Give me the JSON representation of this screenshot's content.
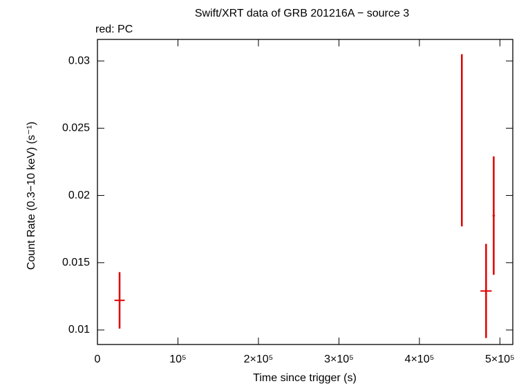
{
  "chart_data": {
    "type": "errorbar",
    "title": "Swift/XRT data of GRB 201216A − source 3",
    "subtitle": "red: PC",
    "x_label": "Time since trigger (s)",
    "y_label": "Count Rate (0.3−10 keV) (s⁻¹)",
    "xlim": [
      0,
      516000
    ],
    "ylim": [
      0.00892,
      0.0316
    ],
    "xticks": [
      0,
      {
        "value": 100000,
        "label": "10⁵"
      },
      {
        "value": 200000,
        "label": "2×10⁵"
      },
      {
        "value": 300000,
        "label": "3×10⁵"
      },
      {
        "value": 400000,
        "label": "4×10⁵"
      },
      {
        "value": 500000,
        "label": "5×10⁵"
      }
    ],
    "yticks": [
      0.01,
      0.015,
      0.02,
      0.025,
      0.03
    ],
    "series": [
      {
        "name": "PC",
        "color": "#e00000",
        "x": [
          27500,
          452700,
          482800,
          492300
        ],
        "xerr": [
          6400,
          500,
          7000,
          1500
        ],
        "values": [
          0.0122,
          0.0241,
          0.0129,
          0.0185
        ],
        "yerr": [
          0.0021,
          0.0064,
          0.0035,
          0.0044
        ]
      }
    ]
  }
}
